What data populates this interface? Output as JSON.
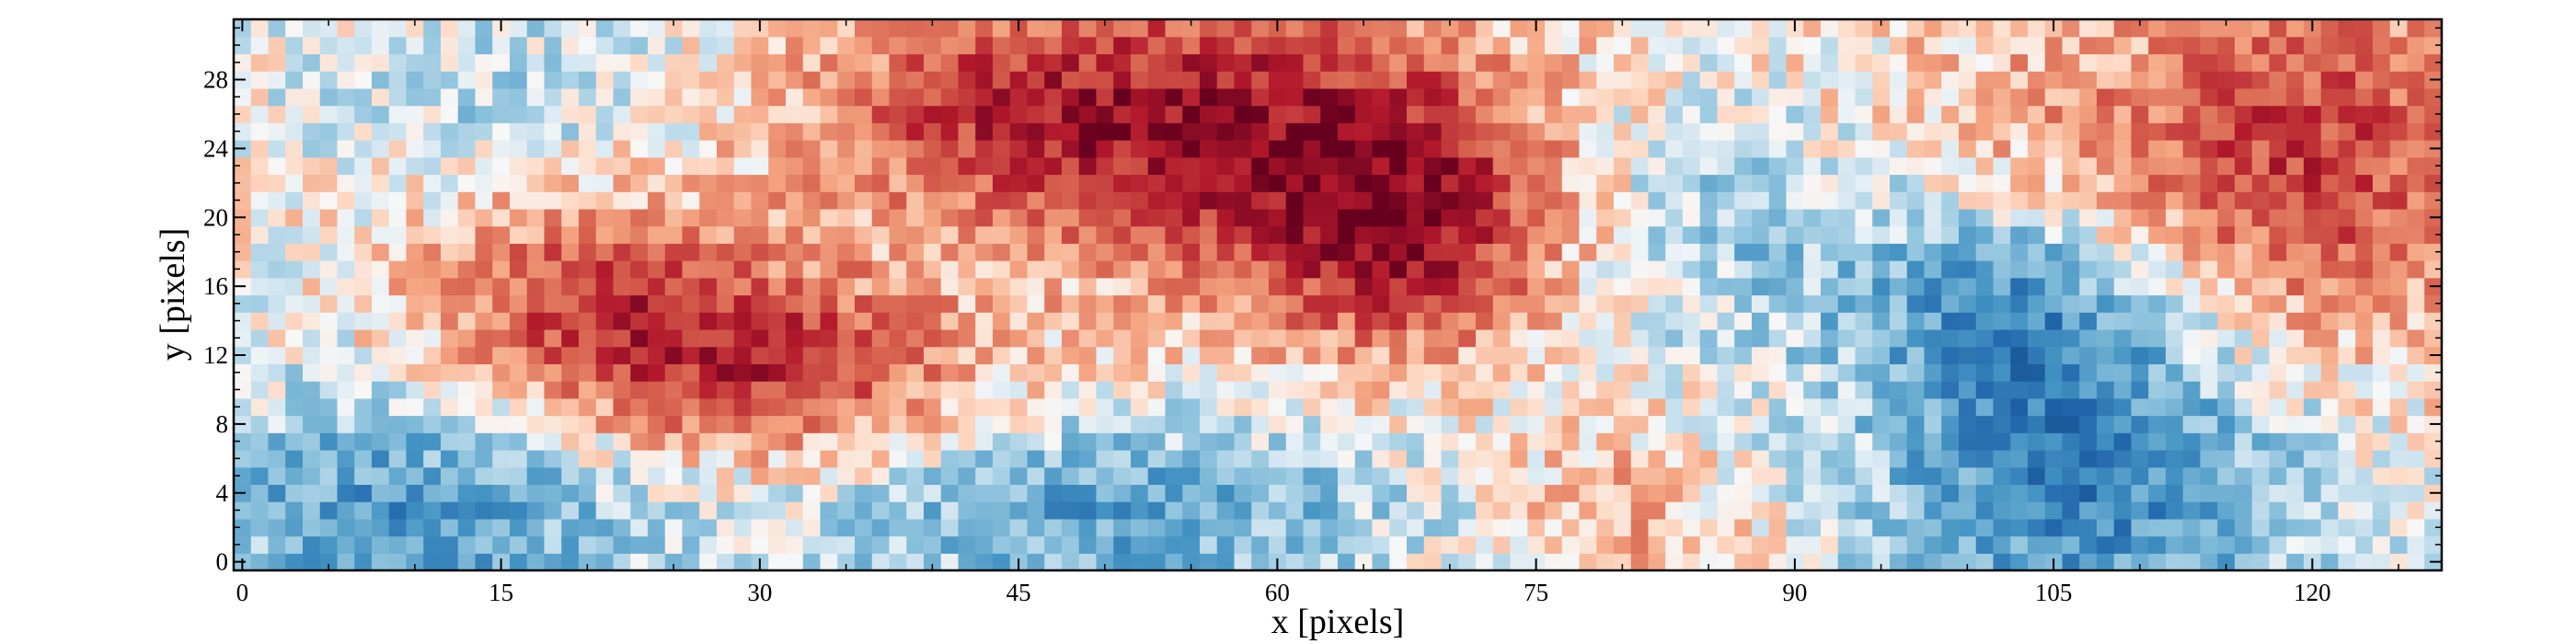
{
  "chart_data": {
    "type": "heatmap",
    "title": "",
    "xlabel": "x [pixels]",
    "ylabel": "y [pixels]",
    "grid": false,
    "xlim": [
      -0.5,
      127.5
    ],
    "ylim": [
      -0.5,
      31.5
    ],
    "x_ticks": [
      0,
      15,
      30,
      45,
      60,
      75,
      90,
      105,
      120
    ],
    "y_ticks": [
      0,
      4,
      8,
      12,
      16,
      20,
      24,
      28
    ],
    "colormap": {
      "name": "RdBu_r",
      "min_color": "#053061",
      "mid_color": "#f7f7f7",
      "max_color": "#67001f",
      "vmin": -1,
      "vmax": 1
    },
    "description_of_values": "per-pixel intensity image, 128 columns by 32 rows; values normalized to [-1, 1]",
    "smooth_field": {
      "positive_regions": [
        {
          "x": 20,
          "y": 15,
          "sx": 7,
          "sy": 5,
          "amp": 0.55
        },
        {
          "x": 32,
          "y": 11,
          "sx": 8,
          "sy": 4,
          "amp": 0.6
        },
        {
          "x": 45,
          "y": 26,
          "sx": 10,
          "sy": 5,
          "amp": 0.6
        },
        {
          "x": 62,
          "y": 24,
          "sx": 10,
          "sy": 7,
          "amp": 0.6
        },
        {
          "x": 68,
          "y": 19,
          "sx": 6,
          "sy": 5,
          "amp": 0.5
        },
        {
          "x": 120,
          "y": 23,
          "sx": 8,
          "sy": 8,
          "amp": 0.6
        },
        {
          "x": 100,
          "y": 26,
          "sx": 10,
          "sy": 5,
          "amp": 0.25
        },
        {
          "x": 80,
          "y": 2,
          "sx": 5,
          "sy": 4,
          "amp": 0.3
        }
      ],
      "negative_regions": [
        {
          "x": 10,
          "y": 3,
          "sx": 10,
          "sy": 5,
          "amp": -0.5
        },
        {
          "x": 50,
          "y": 3,
          "sx": 12,
          "sy": 4,
          "amp": -0.45
        },
        {
          "x": 107,
          "y": 5,
          "sx": 9,
          "sy": 7,
          "amp": -0.6
        },
        {
          "x": 103,
          "y": 15,
          "sx": 6,
          "sy": 4,
          "amp": -0.4
        },
        {
          "x": 88,
          "y": 21,
          "sx": 8,
          "sy": 6,
          "amp": -0.3
        },
        {
          "x": 17,
          "y": 27,
          "sx": 8,
          "sy": 4,
          "amp": -0.2
        }
      ],
      "noise_amplitude": 0.22,
      "seed": 20240517
    }
  }
}
